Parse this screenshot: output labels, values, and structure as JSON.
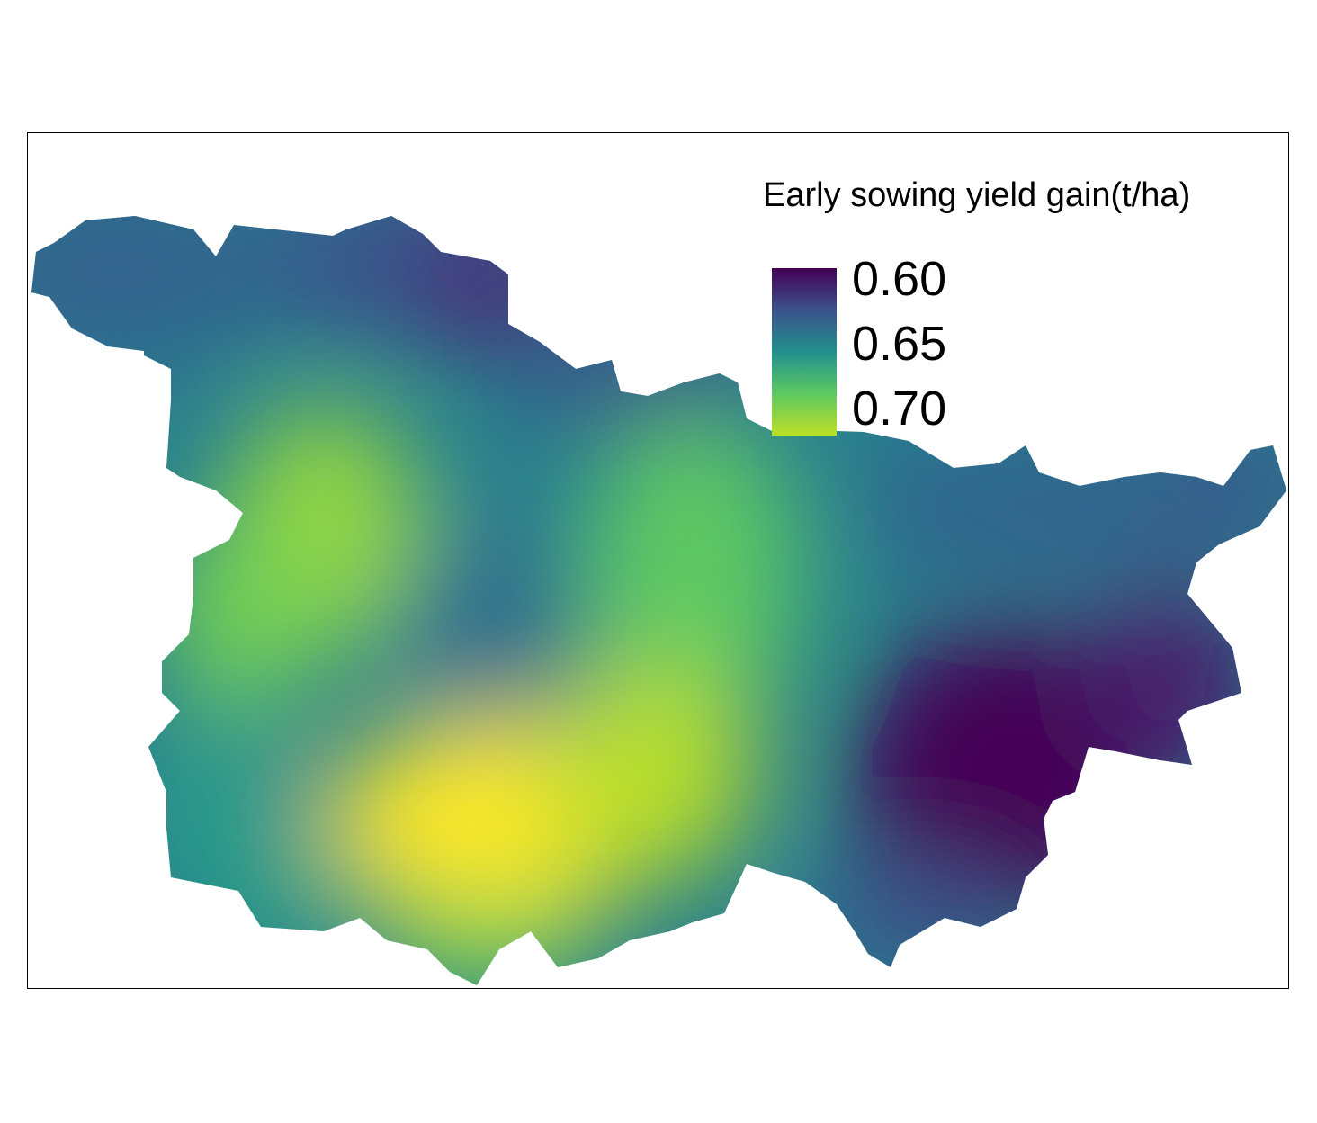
{
  "legend": {
    "title": "Early sowing yield gain(t/ha)",
    "labels": [
      "0.60",
      "0.65",
      "0.70"
    ],
    "colormap": "viridis",
    "color_stops": [
      "#440154",
      "#3b528b",
      "#21908d",
      "#5ec962",
      "#bddf26",
      "#fde725"
    ]
  },
  "map": {
    "type": "raster",
    "variable": "Early sowing yield gain",
    "unit": "t/ha"
  }
}
